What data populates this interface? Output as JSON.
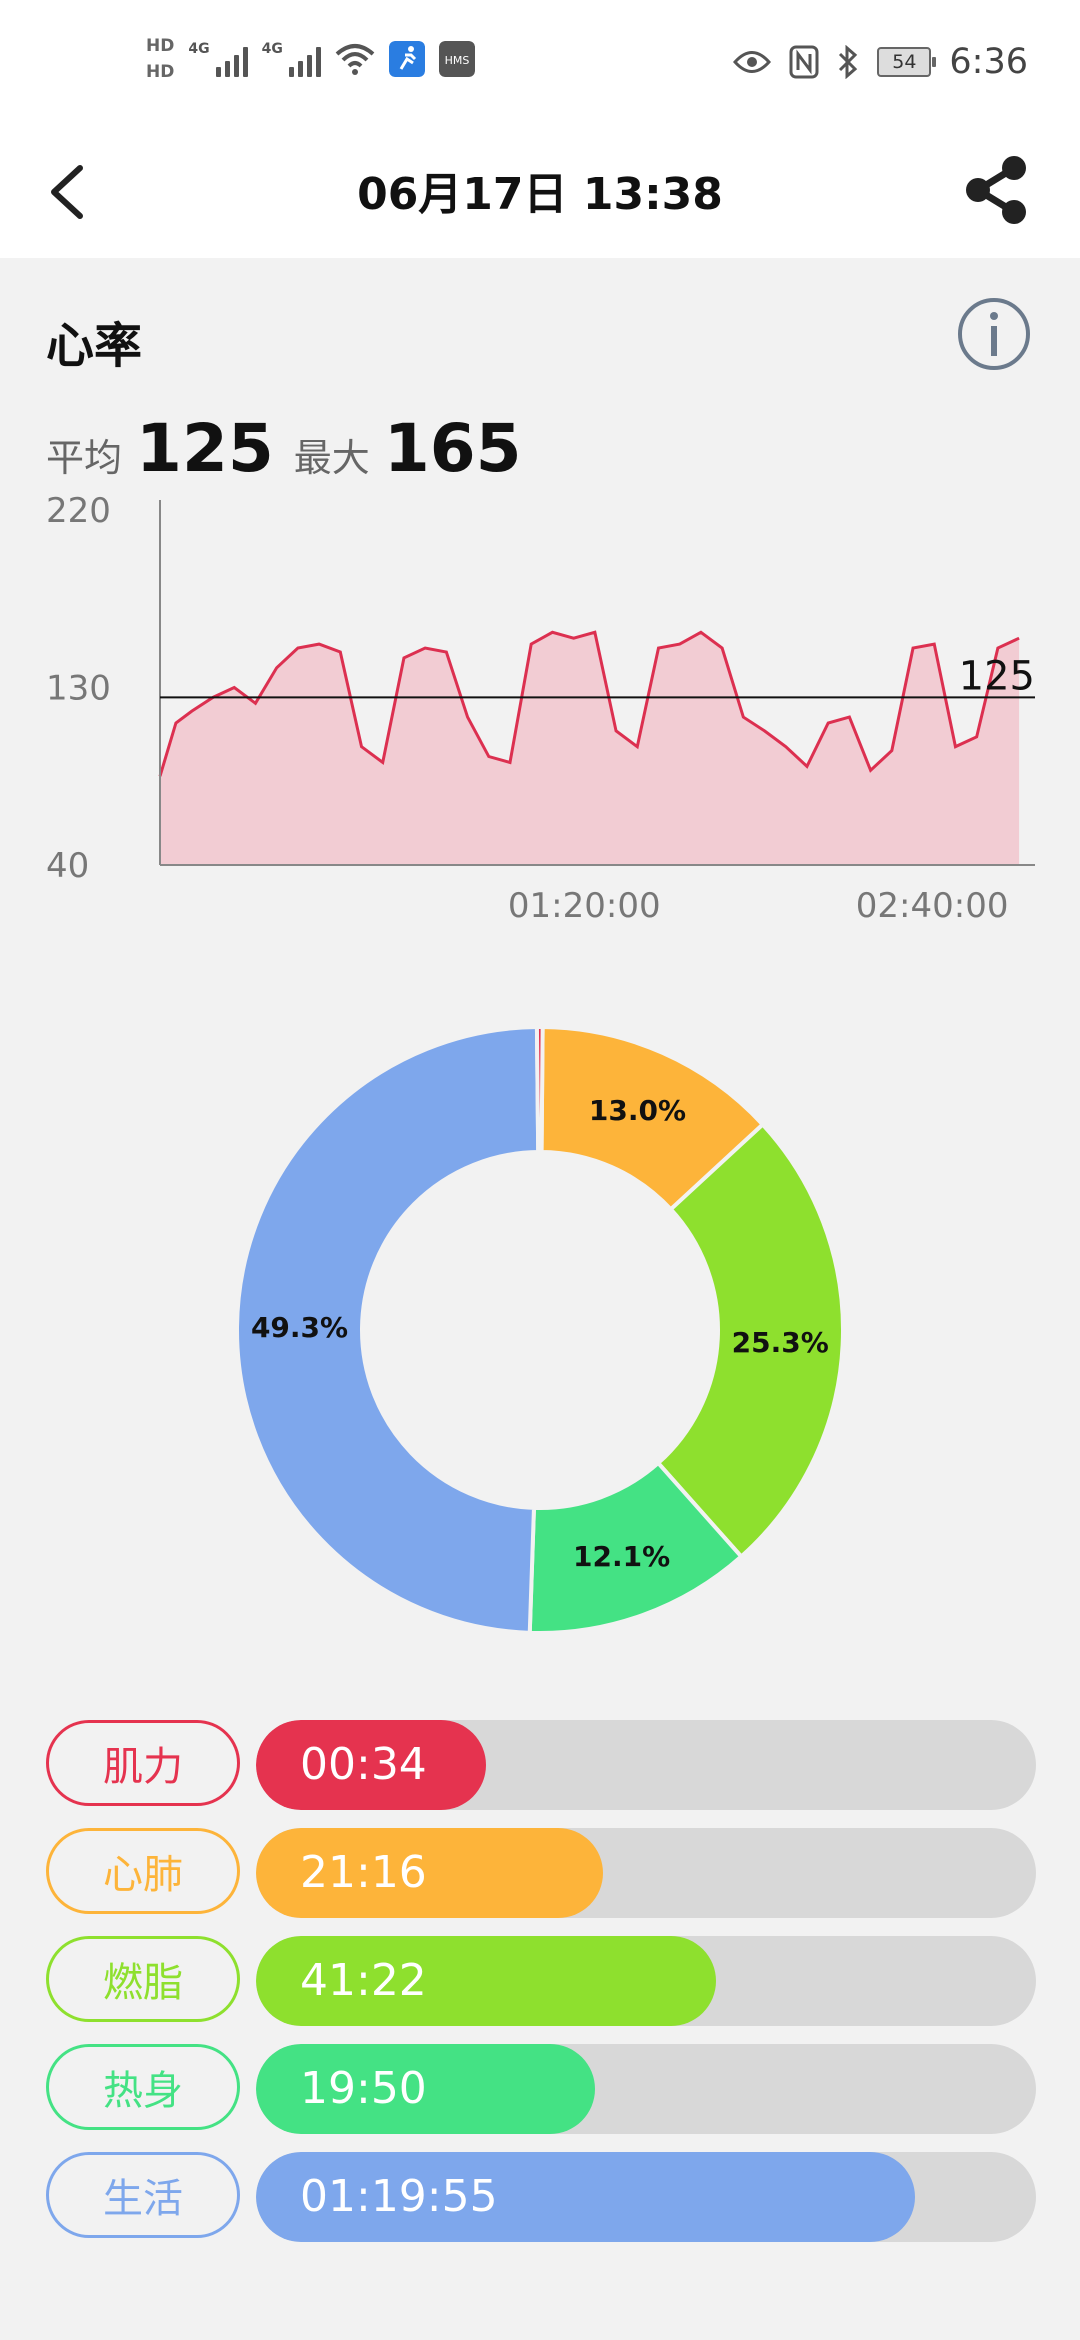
{
  "status_bar": {
    "hd1": "HD",
    "hd2": "HD",
    "net1": "4G",
    "net2": "4G",
    "hms": "HMS",
    "battery": "54",
    "time": "6:36"
  },
  "header": {
    "title": "06月17日 13:38",
    "back_icon": "chevron-left-icon",
    "share_icon": "share-icon"
  },
  "heart_rate": {
    "title": "心率",
    "info_icon": "info-icon",
    "avg_label": "平均",
    "avg_value": "125",
    "max_label": "最大",
    "max_value": "165"
  },
  "chart_data": {
    "type": "area",
    "y_ticks": [
      "220",
      "130",
      "40"
    ],
    "x_ticks": [
      "01:20:00",
      "02:40:00"
    ],
    "ylim": [
      40,
      220
    ],
    "avg_line_label": "125",
    "avg_line_value": 125,
    "fill_color": "#f2ccd3",
    "line_color": "#dc3050",
    "series": [
      {
        "x_minutes": [
          0,
          3,
          6,
          10,
          14,
          18,
          22,
          26,
          30,
          34,
          38,
          42,
          46,
          50,
          54,
          58,
          62,
          66,
          70,
          74,
          78,
          82,
          86,
          90,
          94,
          98,
          102,
          106,
          110,
          114,
          118,
          122,
          126,
          130,
          134,
          138,
          142,
          146,
          150,
          154,
          158,
          162
        ],
        "values": [
          85,
          112,
          118,
          125,
          130,
          122,
          140,
          150,
          152,
          148,
          100,
          92,
          145,
          150,
          148,
          115,
          95,
          92,
          152,
          158,
          155,
          158,
          108,
          100,
          150,
          152,
          158,
          150,
          115,
          108,
          100,
          90,
          112,
          115,
          88,
          98,
          150,
          152,
          100,
          105,
          150,
          155
        ]
      }
    ]
  },
  "donut": {
    "segments": [
      {
        "label": "13.0%",
        "value": 13.0,
        "color": "#fdb43a"
      },
      {
        "label": "25.3%",
        "value": 25.3,
        "color": "#8ee02e"
      },
      {
        "label": "12.1%",
        "value": 12.1,
        "color": "#44e284"
      },
      {
        "label": "49.3%",
        "value": 49.3,
        "color": "#7ea7ec"
      },
      {
        "label": "",
        "value": 0.3,
        "color": "#e23050"
      }
    ]
  },
  "zones": [
    {
      "name": "肌力",
      "time": "00:34",
      "fill": 0.295,
      "color": "#e5334f"
    },
    {
      "name": "心肺",
      "time": "21:16",
      "fill": 0.445,
      "color": "#fdb43a"
    },
    {
      "name": "燃脂",
      "time": "41:22",
      "fill": 0.59,
      "color": "#8ee02e"
    },
    {
      "name": "热身",
      "time": "19:50",
      "fill": 0.435,
      "color": "#44e284"
    },
    {
      "name": "生活",
      "time": "01:19:55",
      "fill": 0.845,
      "color": "#7ea7ec"
    }
  ]
}
